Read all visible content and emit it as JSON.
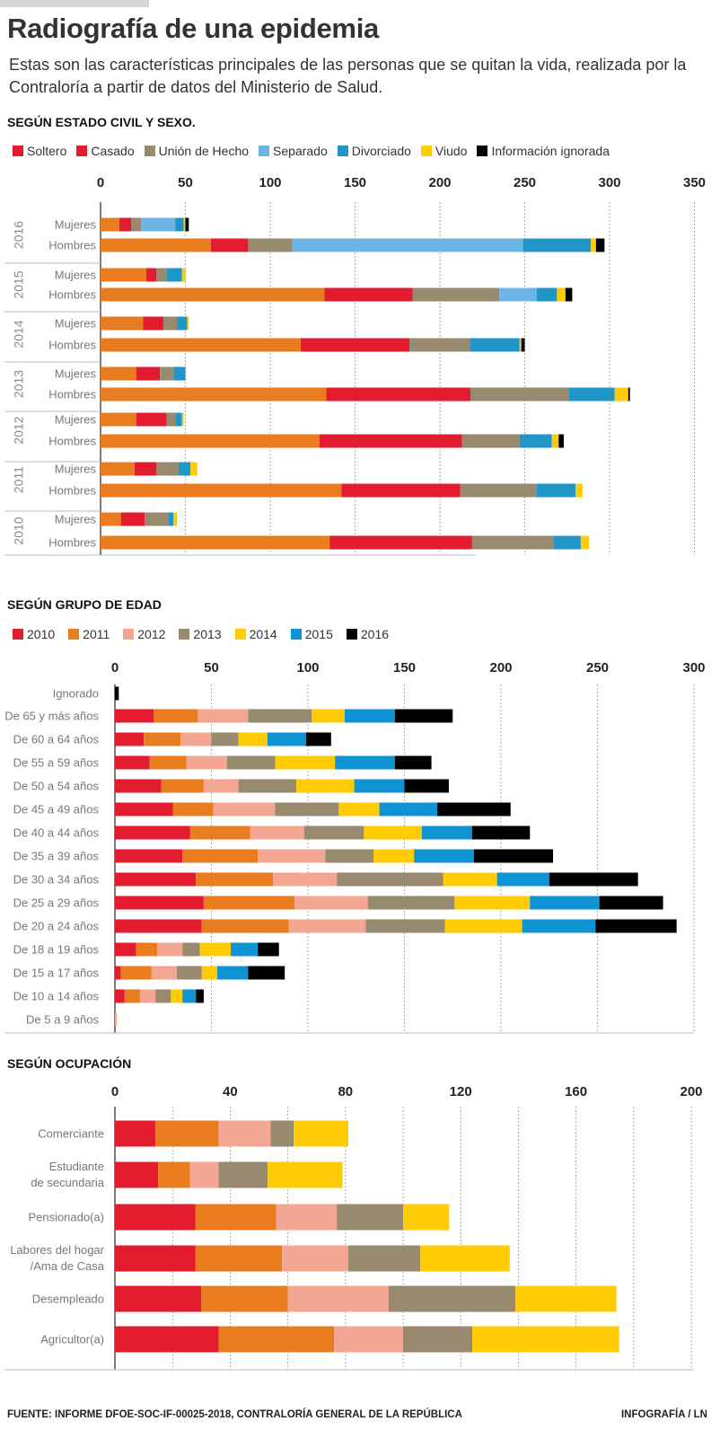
{
  "header": {
    "title": "Radiografía de una epidemia",
    "subtitle": "Estas son las características principales de las personas que se quitan la vida, realizada por la Contraloría a partir de datos del Ministerio de Salud."
  },
  "footer": {
    "source": "FUENTE: INFORME DFOE-SOC-IF-00025-2018, CONTRALORÍA GENERAL DE LA REPÚBLICA",
    "credit": "INFOGRAFÍA / LN"
  },
  "chart_data": [
    {
      "type": "bar",
      "orientation": "horizontal",
      "stacked": true,
      "title": "SEGÚN ESTADO CIVIL Y SEXO.",
      "legend_position": "top",
      "xlim": [
        0,
        350
      ],
      "xticks": [
        0,
        50,
        100,
        150,
        200,
        250,
        300,
        350
      ],
      "grid": true,
      "series": [
        {
          "name": "Soltero",
          "color": "#e87c1e",
          "legend_color": "#e31b2e"
        },
        {
          "name": "Casado",
          "color": "#e31b2e",
          "legend_color": "#e31b2e"
        },
        {
          "name": "Unión de Hecho",
          "color": "#978a6e",
          "legend_color": "#978a6e"
        },
        {
          "name": "Separado",
          "color": "#6cb4e4",
          "legend_color": "#6cb4e4"
        },
        {
          "name": "Divorciado",
          "color": "#1f95c8",
          "legend_color": "#1f95c8"
        },
        {
          "name": "Viudo",
          "color": "#ffcb05",
          "legend_color": "#ffcb05"
        },
        {
          "name": "Información ignorada",
          "color": "#000000",
          "legend_color": "#000000"
        }
      ],
      "groups": [
        {
          "year": "2016",
          "rows": [
            {
              "label": "Mujeres",
              "values": [
                11,
                7,
                6,
                20,
                5,
                1,
                2
              ]
            },
            {
              "label": "Hombres",
              "values": [
                65,
                22,
                26,
                136,
                40,
                3,
                5
              ]
            }
          ]
        },
        {
          "year": "2015",
          "rows": [
            {
              "label": "Mujeres",
              "values": [
                27,
                6,
                6,
                0,
                9,
                2,
                0
              ]
            },
            {
              "label": "Hombres",
              "values": [
                132,
                52,
                51,
                22,
                12,
                5,
                4
              ]
            }
          ]
        },
        {
          "year": "2014",
          "rows": [
            {
              "label": "Mujeres",
              "values": [
                25,
                12,
                8,
                0,
                6,
                1,
                0
              ]
            },
            {
              "label": "Hombres",
              "values": [
                118,
                64,
                36,
                0,
                29,
                1,
                2
              ]
            }
          ]
        },
        {
          "year": "2013",
          "rows": [
            {
              "label": "Mujeres",
              "values": [
                21,
                14,
                8,
                0,
                7,
                0,
                0
              ]
            },
            {
              "label": "Hombres",
              "values": [
                133,
                85,
                58,
                0,
                27,
                8,
                1
              ]
            }
          ]
        },
        {
          "year": "2012",
          "rows": [
            {
              "label": "Mujeres",
              "values": [
                21,
                18,
                5,
                0,
                4,
                1,
                0
              ]
            },
            {
              "label": "Hombres",
              "values": [
                129,
                84,
                34,
                0,
                19,
                4,
                3
              ]
            }
          ]
        },
        {
          "year": "2011",
          "rows": [
            {
              "label": "Mujeres",
              "values": [
                20,
                13,
                13,
                0,
                7,
                4,
                0
              ]
            },
            {
              "label": "Hombres",
              "values": [
                142,
                70,
                45,
                0,
                23,
                4,
                0
              ]
            }
          ]
        },
        {
          "year": "2010",
          "rows": [
            {
              "label": "Mujeres",
              "values": [
                12,
                14,
                14,
                0,
                3,
                2,
                0
              ]
            },
            {
              "label": "Hombres",
              "values": [
                135,
                84,
                48,
                0,
                16,
                5,
                0
              ]
            }
          ]
        }
      ]
    },
    {
      "type": "bar",
      "orientation": "horizontal",
      "stacked": true,
      "title": "SEGÚN GRUPO DE EDAD",
      "legend_position": "top",
      "xlim": [
        0,
        300
      ],
      "xticks": [
        0,
        50,
        100,
        150,
        200,
        250,
        300
      ],
      "grid": true,
      "series": [
        {
          "name": "2010",
          "color": "#e31b2e"
        },
        {
          "name": "2011",
          "color": "#e87c1e"
        },
        {
          "name": "2012",
          "color": "#f3a792"
        },
        {
          "name": "2013",
          "color": "#978a6e"
        },
        {
          "name": "2014",
          "color": "#ffcb05"
        },
        {
          "name": "2015",
          "color": "#0f93d2"
        },
        {
          "name": "2016",
          "color": "#000000"
        }
      ],
      "rows": [
        {
          "label": "Ignorado",
          "values": [
            0,
            0,
            0,
            0,
            0,
            0,
            2
          ]
        },
        {
          "label": "De 65 y más años",
          "values": [
            20,
            23,
            26,
            33,
            17,
            26,
            30
          ]
        },
        {
          "label": "De 60 a 64 años",
          "values": [
            15,
            19,
            16,
            14,
            15,
            20,
            13
          ]
        },
        {
          "label": "De 55 a 59 años",
          "values": [
            18,
            19,
            21,
            25,
            31,
            31,
            19
          ]
        },
        {
          "label": "De 50 a 54 años",
          "values": [
            24,
            22,
            18,
            30,
            30,
            26,
            23
          ]
        },
        {
          "label": "De 45 a 49 años",
          "values": [
            30,
            21,
            32,
            33,
            21,
            30,
            38
          ]
        },
        {
          "label": "De 40 a 44 años",
          "values": [
            39,
            31,
            28,
            31,
            30,
            26,
            30
          ]
        },
        {
          "label": "De 35 a 39 años",
          "values": [
            35,
            39,
            35,
            25,
            21,
            31,
            41
          ]
        },
        {
          "label": "De 30 a 34 años",
          "values": [
            42,
            40,
            33,
            55,
            28,
            27,
            46
          ]
        },
        {
          "label": "De 25 a 29 años",
          "values": [
            46,
            47,
            38,
            45,
            39,
            36,
            33
          ]
        },
        {
          "label": "De 20 a 24 años",
          "values": [
            45,
            45,
            40,
            41,
            40,
            38,
            42
          ]
        },
        {
          "label": "De 18 a 19 años",
          "values": [
            11,
            11,
            13,
            9,
            16,
            14,
            11
          ]
        },
        {
          "label": "De 15 a 17 años",
          "values": [
            3,
            16,
            13,
            13,
            8,
            16,
            19
          ]
        },
        {
          "label": "De 10 a 14 años",
          "values": [
            5,
            8,
            8,
            8,
            6,
            7,
            4
          ]
        },
        {
          "label": "De 5 a 9 años",
          "values": [
            0,
            0,
            1,
            0,
            0,
            0,
            0
          ]
        }
      ]
    },
    {
      "type": "bar",
      "orientation": "horizontal",
      "stacked": true,
      "title": "SEGÚN OCUPACIÓN",
      "xlim": [
        0,
        200
      ],
      "xticks": [
        0,
        40,
        80,
        120,
        160,
        200
      ],
      "grid": true,
      "series": [
        {
          "color": "#e31b2e"
        },
        {
          "color": "#e87c1e"
        },
        {
          "color": "#f3a792"
        },
        {
          "color": "#978a6e"
        },
        {
          "color": "#ffcb05"
        }
      ],
      "rows": [
        {
          "label": [
            "Comerciante"
          ],
          "values": [
            14,
            22,
            18,
            8,
            19
          ]
        },
        {
          "label": [
            "Estudiante",
            "de secundaria"
          ],
          "values": [
            15,
            11,
            10,
            17,
            26
          ]
        },
        {
          "label": [
            "Pensionado(a)"
          ],
          "values": [
            28,
            28,
            21,
            23,
            16
          ]
        },
        {
          "label": [
            "Labores del hogar",
            "/Ama de Casa"
          ],
          "values": [
            28,
            30,
            23,
            25,
            31
          ]
        },
        {
          "label": [
            "Desempleado"
          ],
          "values": [
            30,
            30,
            35,
            44,
            35
          ]
        },
        {
          "label": [
            "Agricultor(a)"
          ],
          "values": [
            36,
            40,
            24,
            24,
            51
          ]
        }
      ]
    }
  ]
}
